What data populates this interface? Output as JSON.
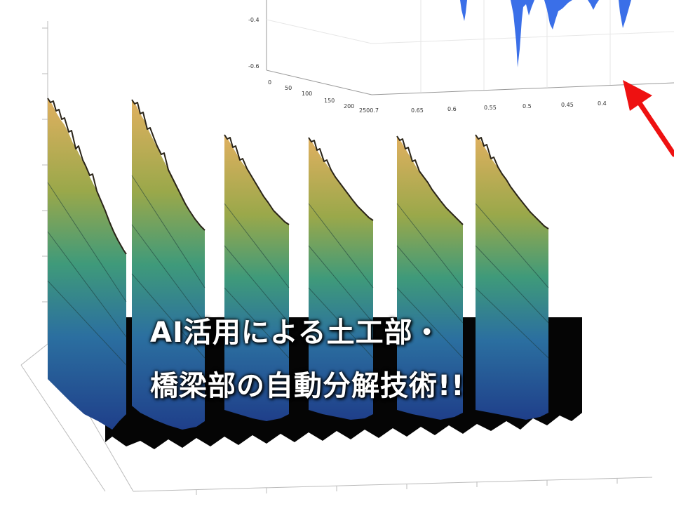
{
  "headline": {
    "line1": "AI活用による土工部・",
    "line2": "橋梁部の自動分解技術!!"
  },
  "inset_plot": {
    "y_ticks": [
      "-0.4",
      "-0.6"
    ],
    "x_ticks": [
      "0",
      "50",
      "100",
      "150",
      "200",
      "2500.7",
      "0.65",
      "0.6",
      "0.55",
      "0.5",
      "0.45",
      "0.4"
    ]
  },
  "colors": {
    "arrow": "#ee1111",
    "inset_surface": "#3a6fe8",
    "headline_text": "#ffffff"
  },
  "icons": {
    "pointer": "red-arrow-icon"
  }
}
